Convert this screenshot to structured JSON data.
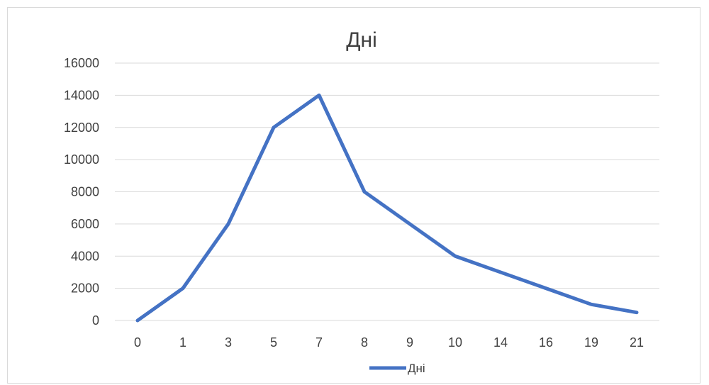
{
  "chart_data": {
    "type": "line",
    "title": "Дні",
    "categories": [
      "0",
      "1",
      "3",
      "5",
      "7",
      "8",
      "9",
      "10",
      "14",
      "16",
      "19",
      "21"
    ],
    "series": [
      {
        "name": "Дні",
        "values": [
          0,
          2000,
          6000,
          12000,
          14000,
          8000,
          6000,
          4000,
          3000,
          2000,
          1000,
          500
        ]
      }
    ],
    "yticks": [
      "0",
      "2000",
      "4000",
      "6000",
      "8000",
      "10000",
      "12000",
      "14000",
      "16000"
    ],
    "ylim": [
      0,
      16000
    ],
    "grid": true,
    "legend_position": "bottom",
    "line_color": "#4472c4"
  }
}
